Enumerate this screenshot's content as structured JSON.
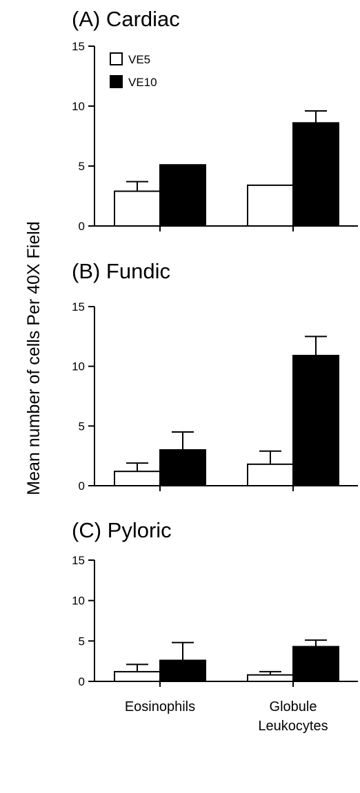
{
  "chart_data": {
    "type": "bar",
    "ylabel": "Mean number of cells Per 40X Field",
    "categories": [
      "Eosinophils",
      "Globule Leukocytes"
    ],
    "category_lines": [
      [
        "Eosinophils"
      ],
      [
        "Globule",
        "Leukocytes"
      ]
    ],
    "legend": [
      {
        "name": "VE5",
        "color": "#ffffff"
      },
      {
        "name": "VE10",
        "color": "#000000"
      }
    ],
    "legend_position": "top-left",
    "ylim": [
      0,
      15
    ],
    "yticks": [
      0,
      5,
      10,
      15
    ],
    "grid": false,
    "panels": [
      {
        "title": "(A) Cardiac",
        "series": [
          {
            "name": "VE5",
            "values": [
              2.9,
              3.4
            ],
            "errors": [
              0.8,
              0.0
            ]
          },
          {
            "name": "VE10",
            "values": [
              5.1,
              8.6
            ],
            "errors": [
              0.0,
              1.0
            ]
          }
        ]
      },
      {
        "title": "(B) Fundic",
        "series": [
          {
            "name": "VE5",
            "values": [
              1.2,
              1.8
            ],
            "errors": [
              0.7,
              1.1
            ]
          },
          {
            "name": "VE10",
            "values": [
              3.0,
              10.9
            ],
            "errors": [
              1.5,
              1.6
            ]
          }
        ]
      },
      {
        "title": "(C) Pyloric",
        "series": [
          {
            "name": "VE5",
            "values": [
              1.2,
              0.8
            ],
            "errors": [
              0.9,
              0.4
            ]
          },
          {
            "name": "VE10",
            "values": [
              2.6,
              4.3
            ],
            "errors": [
              2.2,
              0.8
            ]
          }
        ]
      }
    ]
  }
}
